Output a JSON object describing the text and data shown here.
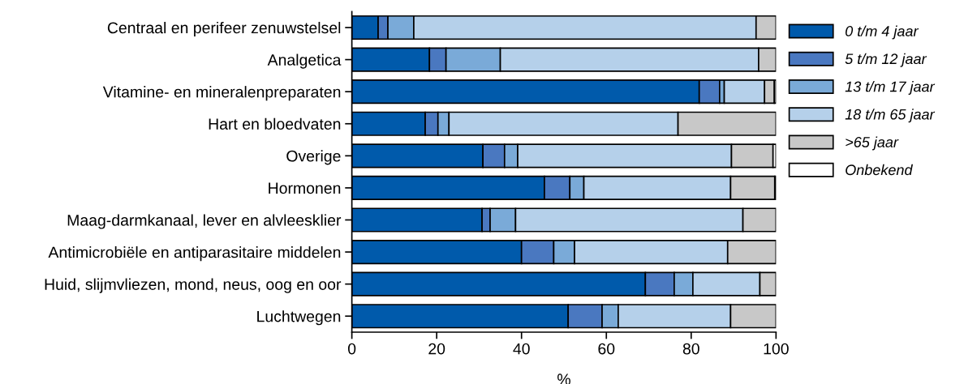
{
  "chart_data": {
    "type": "bar",
    "orientation": "horizontal",
    "stacked": true,
    "xlabel": "%",
    "categories": [
      "Centraal en perifeer zenuwstelsel",
      "Analgetica",
      "Vitamine- en mineralenpreparaten",
      "Hart en bloedvaten",
      "Overige",
      "Hormonen",
      "Maag-darmkanaal, lever en alvleesklier",
      "Antimicrobiële en antiparasitaire middelen",
      "Huid, slijmvliezen, mond, neus, oog en oor",
      "Luchtwegen"
    ],
    "series": [
      {
        "name": "0 t/m 4 jaar",
        "color": "#005aab",
        "values": [
          6.2,
          18.3,
          81.9,
          17.3,
          30.9,
          45.4,
          30.7,
          40.0,
          69.2,
          51.0
        ]
      },
      {
        "name": "5 t/m 12 jaar",
        "color": "#4a78c0",
        "values": [
          2.3,
          3.9,
          4.8,
          3.0,
          5.1,
          6.0,
          1.9,
          7.6,
          6.8,
          8.0
        ]
      },
      {
        "name": "13 t/m 17 jaar",
        "color": "#7aaad8",
        "values": [
          6.1,
          12.8,
          1.1,
          2.6,
          3.1,
          3.3,
          6.0,
          4.9,
          4.4,
          3.8
        ]
      },
      {
        "name": "18 t/m 65 jaar",
        "color": "#b5d0ea",
        "values": [
          80.7,
          60.9,
          9.5,
          54.0,
          50.4,
          34.6,
          53.6,
          36.1,
          15.8,
          26.5
        ]
      },
      {
        "name": ">65 jaar",
        "color": "#c8c8c8",
        "values": [
          4.7,
          4.1,
          2.3,
          23.1,
          9.8,
          10.4,
          7.8,
          11.4,
          3.8,
          10.7
        ]
      },
      {
        "name": "Onbekend",
        "color": "#ffffff",
        "values": [
          0,
          0,
          0.4,
          0,
          0.7,
          0.3,
          0,
          0,
          0,
          0
        ]
      }
    ],
    "xlim": [
      0,
      100
    ],
    "xticks": [
      0,
      20,
      40,
      60,
      80,
      100
    ],
    "grid": false,
    "legend": "right"
  }
}
